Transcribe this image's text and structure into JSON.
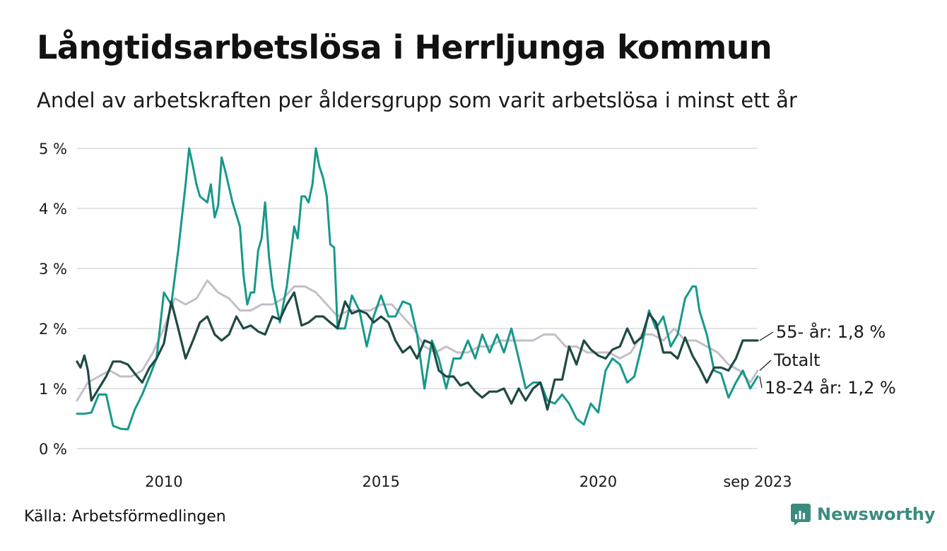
{
  "title": "Långtidsarbetslösa i Herrljunga kommun",
  "subtitle": "Andel av arbetskraften per åldersgrupp som varit arbetslösa i minst ett år",
  "source": "Källa: Arbetsförmedlingen",
  "brand": "Newsworthy",
  "colors": {
    "young": "#17998a",
    "old": "#1f4a45",
    "total": "#c3bfca",
    "grid": "#e3e3e3"
  },
  "chart_data": {
    "type": "line",
    "title": "Långtidsarbetslösa i Herrljunga kommun",
    "xlabel": "",
    "ylabel": "",
    "ylim": [
      0,
      5
    ],
    "xlim": [
      2008.0,
      2023.67
    ],
    "yticks": [
      0,
      1,
      2,
      3,
      4,
      5
    ],
    "ytick_labels": [
      "0 %",
      "1 %",
      "2 %",
      "3 %",
      "4 %",
      "5 %"
    ],
    "xticks": [
      2010,
      2015,
      2020,
      2023.67
    ],
    "xtick_labels": [
      "2010",
      "2015",
      "2020",
      "sep 2023"
    ],
    "grid": true,
    "series": [
      {
        "name": "Totalt",
        "key": "total",
        "end_label": "Totalt",
        "x": [
          2008.0,
          2008.25,
          2008.5,
          2008.75,
          2009.0,
          2009.25,
          2009.5,
          2009.75,
          2010.0,
          2010.25,
          2010.5,
          2010.75,
          2011.0,
          2011.25,
          2011.5,
          2011.75,
          2012.0,
          2012.25,
          2012.5,
          2012.75,
          2013.0,
          2013.25,
          2013.5,
          2013.75,
          2014.0,
          2014.25,
          2014.5,
          2014.75,
          2015.0,
          2015.25,
          2015.5,
          2015.75,
          2016.0,
          2016.25,
          2016.5,
          2016.75,
          2017.0,
          2017.25,
          2017.5,
          2017.75,
          2018.0,
          2018.25,
          2018.5,
          2018.75,
          2019.0,
          2019.25,
          2019.5,
          2019.75,
          2020.0,
          2020.25,
          2020.5,
          2020.75,
          2021.0,
          2021.25,
          2021.5,
          2021.75,
          2022.0,
          2022.25,
          2022.5,
          2022.75,
          2023.0,
          2023.25,
          2023.5,
          2023.67
        ],
        "values": [
          0.8,
          1.1,
          1.2,
          1.3,
          1.2,
          1.2,
          1.3,
          1.6,
          2.0,
          2.5,
          2.4,
          2.5,
          2.8,
          2.6,
          2.5,
          2.3,
          2.3,
          2.4,
          2.4,
          2.5,
          2.7,
          2.7,
          2.6,
          2.4,
          2.2,
          2.3,
          2.3,
          2.3,
          2.4,
          2.4,
          2.2,
          2.0,
          1.7,
          1.6,
          1.7,
          1.6,
          1.6,
          1.7,
          1.7,
          1.8,
          1.8,
          1.8,
          1.8,
          1.9,
          1.9,
          1.7,
          1.7,
          1.6,
          1.6,
          1.6,
          1.5,
          1.6,
          1.9,
          1.9,
          1.8,
          2.0,
          1.8,
          1.8,
          1.7,
          1.6,
          1.4,
          1.3,
          1.1,
          1.3
        ]
      },
      {
        "name": "18-24 år",
        "key": "young",
        "end_label": "18-24 år: 1,2 %",
        "x": [
          2008.0,
          2008.17,
          2008.33,
          2008.5,
          2008.67,
          2008.83,
          2009.0,
          2009.17,
          2009.33,
          2009.5,
          2009.67,
          2009.83,
          2010.0,
          2010.17,
          2010.33,
          2010.5,
          2010.58,
          2010.67,
          2010.75,
          2010.83,
          2011.0,
          2011.08,
          2011.17,
          2011.25,
          2011.33,
          2011.42,
          2011.58,
          2011.75,
          2011.83,
          2011.92,
          2012.0,
          2012.08,
          2012.17,
          2012.25,
          2012.33,
          2012.42,
          2012.5,
          2012.67,
          2012.83,
          2013.0,
          2013.08,
          2013.17,
          2013.25,
          2013.33,
          2013.42,
          2013.5,
          2013.58,
          2013.67,
          2013.75,
          2013.83,
          2013.92,
          2014.0,
          2014.17,
          2014.33,
          2014.5,
          2014.67,
          2014.83,
          2015.0,
          2015.17,
          2015.33,
          2015.5,
          2015.67,
          2015.83,
          2016.0,
          2016.17,
          2016.33,
          2016.5,
          2016.67,
          2016.83,
          2017.0,
          2017.17,
          2017.33,
          2017.5,
          2017.67,
          2017.83,
          2018.0,
          2018.17,
          2018.33,
          2018.5,
          2018.67,
          2018.83,
          2019.0,
          2019.17,
          2019.33,
          2019.5,
          2019.67,
          2019.83,
          2020.0,
          2020.17,
          2020.33,
          2020.5,
          2020.67,
          2020.83,
          2021.0,
          2021.17,
          2021.33,
          2021.5,
          2021.67,
          2021.83,
          2022.0,
          2022.17,
          2022.25,
          2022.33,
          2022.5,
          2022.67,
          2022.83,
          2023.0,
          2023.17,
          2023.33,
          2023.5,
          2023.67
        ],
        "values": [
          0.58,
          0.58,
          0.6,
          0.9,
          0.9,
          0.38,
          0.33,
          0.32,
          0.65,
          0.9,
          1.2,
          1.5,
          2.6,
          2.4,
          3.3,
          4.4,
          5.0,
          4.7,
          4.4,
          4.2,
          4.1,
          4.4,
          3.85,
          4.05,
          4.85,
          4.6,
          4.1,
          3.7,
          2.9,
          2.4,
          2.6,
          2.6,
          3.3,
          3.5,
          4.1,
          3.2,
          2.7,
          2.1,
          2.7,
          3.7,
          3.5,
          4.2,
          4.2,
          4.1,
          4.4,
          5.0,
          4.7,
          4.5,
          4.2,
          3.4,
          3.35,
          2.0,
          2.0,
          2.55,
          2.3,
          1.7,
          2.2,
          2.55,
          2.2,
          2.2,
          2.45,
          2.4,
          1.9,
          1.0,
          1.8,
          1.5,
          1.0,
          1.5,
          1.5,
          1.8,
          1.5,
          1.9,
          1.6,
          1.9,
          1.6,
          2.0,
          1.5,
          1.0,
          1.1,
          1.1,
          0.8,
          0.75,
          0.9,
          0.75,
          0.5,
          0.4,
          0.75,
          0.6,
          1.3,
          1.5,
          1.4,
          1.1,
          1.2,
          1.7,
          2.3,
          2.0,
          2.2,
          1.7,
          1.9,
          2.5,
          2.7,
          2.7,
          2.3,
          1.9,
          1.3,
          1.25,
          0.85,
          1.1,
          1.3,
          1.0,
          1.2
        ]
      },
      {
        "name": "55- år",
        "key": "old",
        "end_label": "55- år: 1,8 %",
        "x": [
          2008.0,
          2008.08,
          2008.17,
          2008.25,
          2008.33,
          2008.5,
          2008.67,
          2008.83,
          2009.0,
          2009.17,
          2009.33,
          2009.5,
          2009.67,
          2009.83,
          2010.0,
          2010.17,
          2010.33,
          2010.5,
          2010.67,
          2010.83,
          2011.0,
          2011.17,
          2011.33,
          2011.5,
          2011.67,
          2011.83,
          2012.0,
          2012.17,
          2012.33,
          2012.5,
          2012.67,
          2012.83,
          2013.0,
          2013.17,
          2013.33,
          2013.5,
          2013.67,
          2013.83,
          2014.0,
          2014.17,
          2014.33,
          2014.5,
          2014.67,
          2014.83,
          2015.0,
          2015.17,
          2015.33,
          2015.5,
          2015.67,
          2015.83,
          2016.0,
          2016.17,
          2016.33,
          2016.5,
          2016.67,
          2016.83,
          2017.0,
          2017.17,
          2017.33,
          2017.5,
          2017.67,
          2017.83,
          2018.0,
          2018.17,
          2018.33,
          2018.5,
          2018.67,
          2018.83,
          2019.0,
          2019.17,
          2019.33,
          2019.5,
          2019.67,
          2019.83,
          2020.0,
          2020.17,
          2020.33,
          2020.5,
          2020.67,
          2020.83,
          2021.0,
          2021.17,
          2021.33,
          2021.5,
          2021.67,
          2021.83,
          2022.0,
          2022.17,
          2022.33,
          2022.5,
          2022.67,
          2022.83,
          2023.0,
          2023.17,
          2023.33,
          2023.5,
          2023.67
        ],
        "values": [
          1.45,
          1.35,
          1.55,
          1.3,
          0.8,
          1.0,
          1.2,
          1.45,
          1.45,
          1.4,
          1.25,
          1.1,
          1.35,
          1.5,
          1.75,
          2.45,
          2.0,
          1.5,
          1.8,
          2.1,
          2.2,
          1.9,
          1.8,
          1.9,
          2.2,
          2.0,
          2.05,
          1.95,
          1.9,
          2.2,
          2.15,
          2.4,
          2.6,
          2.05,
          2.1,
          2.2,
          2.2,
          2.1,
          2.0,
          2.45,
          2.25,
          2.3,
          2.25,
          2.1,
          2.2,
          2.1,
          1.8,
          1.6,
          1.7,
          1.5,
          1.8,
          1.75,
          1.3,
          1.2,
          1.2,
          1.05,
          1.1,
          0.95,
          0.85,
          0.95,
          0.95,
          1.0,
          0.75,
          1.0,
          0.8,
          1.0,
          1.1,
          0.65,
          1.15,
          1.15,
          1.7,
          1.4,
          1.8,
          1.65,
          1.55,
          1.5,
          1.65,
          1.7,
          2.0,
          1.75,
          1.85,
          2.25,
          2.1,
          1.6,
          1.6,
          1.5,
          1.85,
          1.55,
          1.35,
          1.1,
          1.35,
          1.35,
          1.3,
          1.5,
          1.8,
          1.8,
          1.8
        ]
      }
    ]
  }
}
